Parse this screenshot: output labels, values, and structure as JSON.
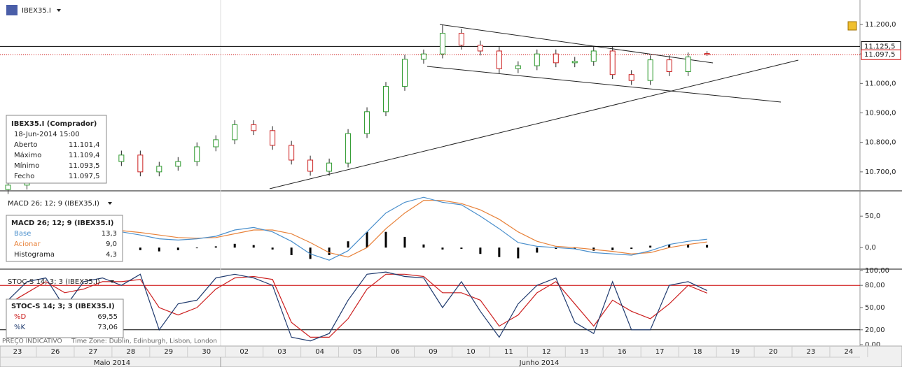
{
  "header": {
    "symbol": "IBEX35.I"
  },
  "chart_data": [
    {
      "type": "candlestick",
      "ylim": [
        10638,
        11283
      ],
      "yticks": [
        {
          "value": 10700,
          "label": "10.700,0"
        },
        {
          "value": 10800,
          "label": "10.800,0"
        },
        {
          "value": 10900,
          "label": "10.900,0"
        },
        {
          "value": 11000,
          "label": "11.000,0"
        },
        {
          "value": 11100,
          "label": "11.100,0"
        },
        {
          "value": 11200,
          "label": "11.200,0"
        }
      ],
      "open": [
        10640,
        10655,
        10690,
        10700,
        10730,
        10738,
        10735,
        10757,
        10700,
        10719,
        10735,
        10785,
        10809,
        10860,
        10840,
        10790,
        10740,
        10702,
        10730,
        10830,
        10904,
        10990,
        11082,
        11100,
        11170,
        11130,
        11110,
        11050,
        11060,
        11100,
        11070,
        11075,
        11110,
        11030,
        11010,
        11080,
        11040,
        11101.4
      ],
      "high": [
        10670,
        10705,
        10715,
        10745,
        10753,
        10753,
        10772,
        10772,
        10734,
        10750,
        10800,
        10824,
        10875,
        10875,
        10855,
        10805,
        10755,
        10745,
        10845,
        10919,
        11005,
        11097,
        11115,
        11200,
        11185,
        11145,
        11125,
        11075,
        11115,
        11115,
        11090,
        11125,
        11125,
        11045,
        11095,
        11095,
        11105,
        11109.4
      ],
      "low": [
        10625,
        10640,
        10675,
        10685,
        10715,
        10720,
        10720,
        10685,
        10685,
        10704,
        10720,
        10770,
        10794,
        10825,
        10775,
        10725,
        10687,
        10687,
        10715,
        10815,
        10889,
        10975,
        11067,
        11085,
        11115,
        11095,
        11035,
        11035,
        11045,
        11055,
        11055,
        11060,
        11015,
        10995,
        10995,
        11025,
        11025,
        11093.5
      ],
      "close": [
        10655,
        10690,
        10700,
        10730,
        10738,
        10735,
        10757,
        10700,
        10719,
        10735,
        10785,
        10809,
        10860,
        10840,
        10790,
        10740,
        10702,
        10730,
        10830,
        10904,
        10990,
        11082,
        11100,
        11170,
        11130,
        11110,
        11050,
        11060,
        11100,
        11070,
        11075,
        11110,
        11030,
        11010,
        11080,
        11040,
        11090,
        11097.5
      ],
      "up_color": "#2e9a2e",
      "down_color": "#cc2020",
      "price_lines": [
        {
          "value": 11125.5,
          "label": "11.125,5",
          "color": "#000000"
        },
        {
          "value": 11097.5,
          "label": "11.097,5",
          "color": "#cc0000"
        }
      ],
      "info": {
        "title": "IBEX35.I (Comprador)",
        "date": "18-Jun-2014 15:00",
        "rows": [
          [
            "Aberto",
            "11.101,4"
          ],
          [
            "Máximo",
            "11.109,4"
          ],
          [
            "Mínimo",
            "11.093,5"
          ],
          [
            "Fecho",
            "11.097,5"
          ]
        ]
      }
    },
    {
      "type": "macd",
      "title": "MACD 26; 12; 9 (IBEX35.I)",
      "ylim": [
        -32,
        88
      ],
      "yticks": [
        {
          "value": 50,
          "label": "50,0"
        },
        {
          "value": 0,
          "label": "0,0"
        }
      ],
      "series": [
        {
          "name": "Base",
          "color": "#4a8fcc",
          "values": [
            30,
            32,
            34,
            30,
            26,
            22,
            25,
            20,
            14,
            12,
            14,
            18,
            28,
            32,
            25,
            10,
            -10,
            -20,
            -5,
            25,
            55,
            72,
            80,
            72,
            68,
            50,
            30,
            8,
            2,
            0,
            -2,
            -8,
            -10,
            -12,
            -5,
            5,
            10,
            13.3
          ]
        },
        {
          "name": "Acionar",
          "color": "#e8823a",
          "values": [
            33,
            33,
            33,
            32,
            30,
            28,
            27,
            24,
            20,
            16,
            15,
            16,
            22,
            28,
            28,
            22,
            8,
            -8,
            -15,
            0,
            30,
            55,
            75,
            75,
            70,
            60,
            45,
            25,
            10,
            2,
            0,
            -3,
            -6,
            -10,
            -8,
            0,
            5,
            9.0
          ]
        },
        {
          "name": "Histograma",
          "color": "#000000",
          "values": [
            -3,
            -1,
            1,
            -2,
            -4,
            -6,
            -2,
            -4,
            -6,
            -4,
            -1,
            2,
            6,
            4,
            -3,
            -12,
            -18,
            -12,
            10,
            25,
            25,
            17,
            5,
            -3,
            -2,
            -10,
            -15,
            -17,
            -8,
            -2,
            -2,
            -5,
            -4,
            -2,
            3,
            5,
            5,
            4.3
          ]
        }
      ],
      "value_labels": [
        "13,3",
        "9,0",
        "4,3"
      ]
    },
    {
      "type": "stochastic",
      "title": "STOC-S 14; 3; 3 (IBEX35.I)",
      "ylim": [
        0,
        100
      ],
      "yticks": [
        {
          "value": 100,
          "label": "100,00"
        },
        {
          "value": 80,
          "label": "80,00"
        },
        {
          "value": 50,
          "label": "50,00"
        },
        {
          "value": 20,
          "label": "20,00"
        },
        {
          "value": 0,
          "label": "0,00"
        }
      ],
      "levels": [
        {
          "value": 80,
          "color": "#cc0000"
        },
        {
          "value": 20,
          "color": "#000000"
        }
      ],
      "series": [
        {
          "name": "%D",
          "color": "#cc2020",
          "values": [
            55,
            70,
            85,
            70,
            75,
            85,
            85,
            88,
            50,
            40,
            50,
            75,
            90,
            92,
            88,
            30,
            10,
            10,
            35,
            75,
            95,
            95,
            92,
            70,
            70,
            60,
            25,
            40,
            70,
            85,
            55,
            25,
            60,
            45,
            35,
            55,
            80,
            69.55
          ]
        },
        {
          "name": "%K",
          "color": "#1f3a6e",
          "values": [
            60,
            85,
            90,
            50,
            85,
            90,
            80,
            95,
            20,
            55,
            60,
            90,
            95,
            90,
            80,
            10,
            5,
            15,
            60,
            95,
            98,
            92,
            90,
            50,
            85,
            45,
            10,
            55,
            80,
            90,
            30,
            15,
            85,
            20,
            20,
            80,
            85,
            73.06
          ]
        }
      ],
      "value_labels": [
        "69,55",
        "73,06"
      ]
    }
  ],
  "x_axis": {
    "days": [
      "23",
      "26",
      "27",
      "28",
      "29",
      "30",
      "02",
      "03",
      "04",
      "05",
      "06",
      "09",
      "10",
      "11",
      "12",
      "13",
      "16",
      "17",
      "18",
      "19",
      "20",
      "23",
      "24"
    ],
    "months": [
      "Maio 2014",
      "Junho 2014"
    ]
  },
  "footer": {
    "note": "PREÇO INDICATIVO",
    "timezone": "Time Zone: Dublin, Edinburgh, Lisbon, London"
  }
}
